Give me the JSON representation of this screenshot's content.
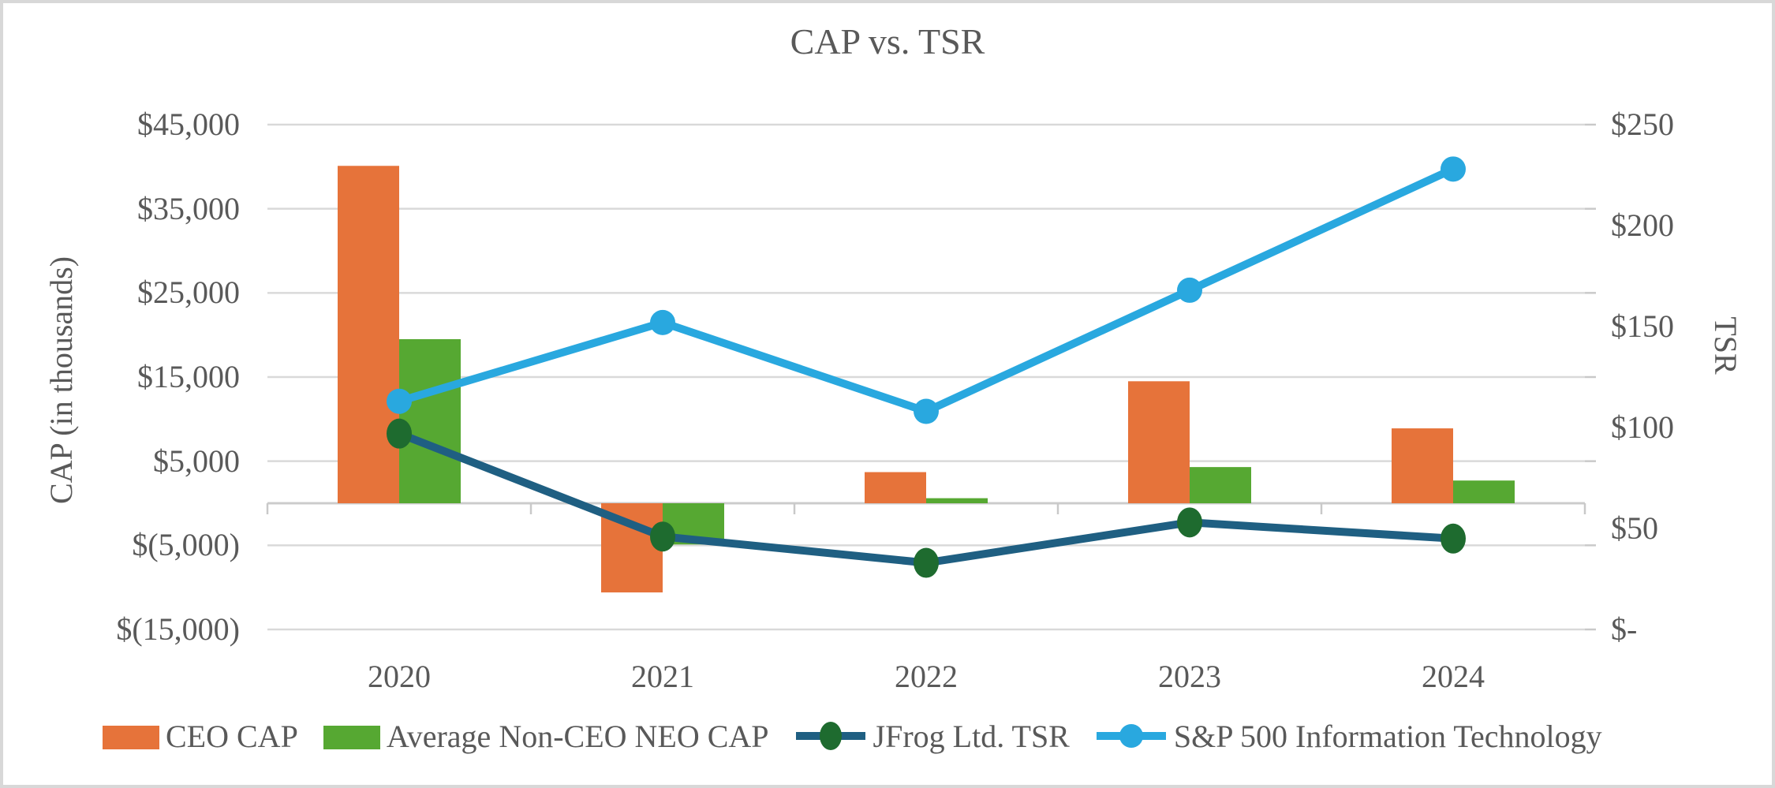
{
  "chart_data": {
    "type": "bar+line combo",
    "title": "CAP vs. TSR",
    "categories": [
      "2020",
      "2021",
      "2022",
      "2023",
      "2024"
    ],
    "bar_series": [
      {
        "name": "CEO CAP",
        "color": "#E6733A",
        "axis": "left",
        "values": [
          40100,
          -10600,
          3700,
          14500,
          8900
        ]
      },
      {
        "name": "Average Non-CEO NEO CAP",
        "color": "#56A832",
        "axis": "left",
        "values": [
          19500,
          -4900,
          600,
          4300,
          2700
        ]
      }
    ],
    "line_series": [
      {
        "name": "JFrog Ltd. TSR",
        "line_color": "#1F5F82",
        "marker_color": "#1E6B2F",
        "marker_shape": "ellipse",
        "axis": "right",
        "values": [
          97,
          46,
          33,
          53,
          45
        ]
      },
      {
        "name": "S&P 500 Information Technology",
        "line_color": "#29A8DF",
        "marker_color": "#29A8DF",
        "marker_shape": "circle",
        "axis": "right",
        "values": [
          113,
          152,
          108,
          168,
          228
        ]
      }
    ],
    "left_axis": {
      "title": "CAP (in thousands)",
      "min": -15000,
      "max": 45000,
      "tick_values": [
        45000,
        35000,
        25000,
        15000,
        5000,
        -5000,
        -15000
      ],
      "tick_labels": [
        "$45,000",
        "$35,000",
        "$25,000",
        "$15,000",
        "$5,000",
        "$(5,000)",
        "$(15,000)"
      ]
    },
    "right_axis": {
      "title": "TSR",
      "min": 0,
      "max": 250,
      "tick_values": [
        250,
        200,
        150,
        100,
        50,
        0
      ],
      "tick_labels": [
        "$250",
        "$200",
        "$150",
        "$100",
        "$50",
        "$-"
      ]
    },
    "grid": true,
    "legend_position": "bottom",
    "colors": {
      "gridline": "#D9D9D9",
      "zero_axis": "#CCCCCC",
      "tick_mark": "#C9C9C9",
      "text": "#595959",
      "frame_border": "#D8D8D8",
      "background": "#FFFFFF"
    }
  }
}
